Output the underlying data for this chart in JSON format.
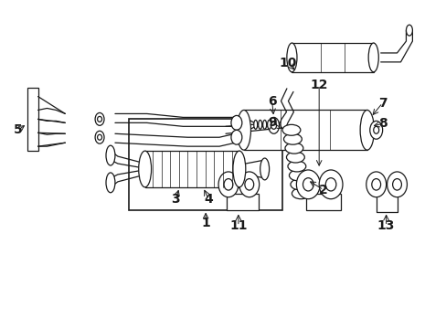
{
  "bg_color": "#ffffff",
  "line_color": "#1a1a1a",
  "fig_width": 4.89,
  "fig_height": 3.6,
  "dpi": 100,
  "label_fs": 10,
  "label_bold": true
}
